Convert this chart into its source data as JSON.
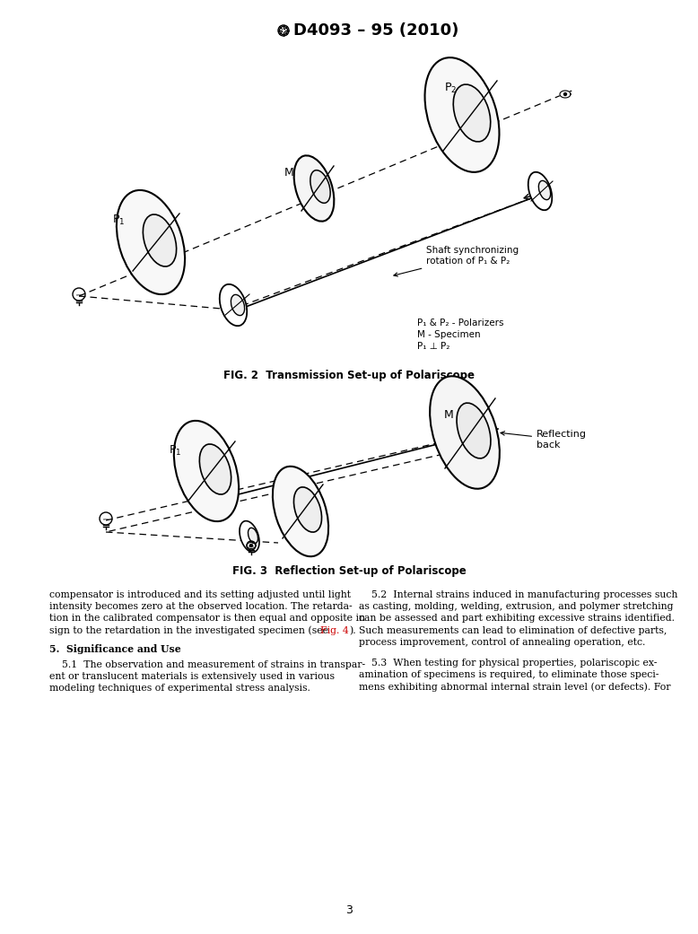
{
  "title": "D4093 – 95 (2010)",
  "fig2_caption": "FIG. 2  Transmission Set-up of Polariscope",
  "fig3_caption": "FIG. 3  Reflection Set-up of Polariscope",
  "legend_fig2_lines": [
    "P₁ & P₂ - Polarizers",
    "M - Specimen",
    "P₁ ⊥ P₂"
  ],
  "shaft_label": "Shaft synchronizing\nrotation of P₁ & P₂",
  "reflecting_label": "Reflecting\nback",
  "page_number": "3",
  "fig4_ref_color": "#cc0000",
  "background_color": "#ffffff",
  "col1_lines": [
    "compensator is introduced and its setting adjusted until light",
    "intensity becomes zero at the observed location. The retarda-",
    "tion in the calibrated compensator is then equal and opposite in",
    "sign to the retardation in the investigated specimen (see"
  ],
  "col1_fig4_suffix": ").",
  "section_header": "5.  Significance and Use",
  "col1_51_lines": [
    "    5.1  The observation and measurement of strains in transpar-",
    "ent or translucent materials is extensively used in various",
    "modeling techniques of experimental stress analysis."
  ],
  "col2_52_lines": [
    "    5.2  Internal strains induced in manufacturing processes such",
    "as casting, molding, welding, extrusion, and polymer stretching",
    "can be assessed and part exhibiting excessive strains identified.",
    "Such measurements can lead to elimination of defective parts,",
    "process improvement, control of annealing operation, etc."
  ],
  "col2_53_lines": [
    "    5.3  When testing for physical properties, polariscopic ex-",
    "amination of specimens is required, to eliminate those speci-",
    "mens exhibiting abnormal internal strain level (or defects). For"
  ]
}
